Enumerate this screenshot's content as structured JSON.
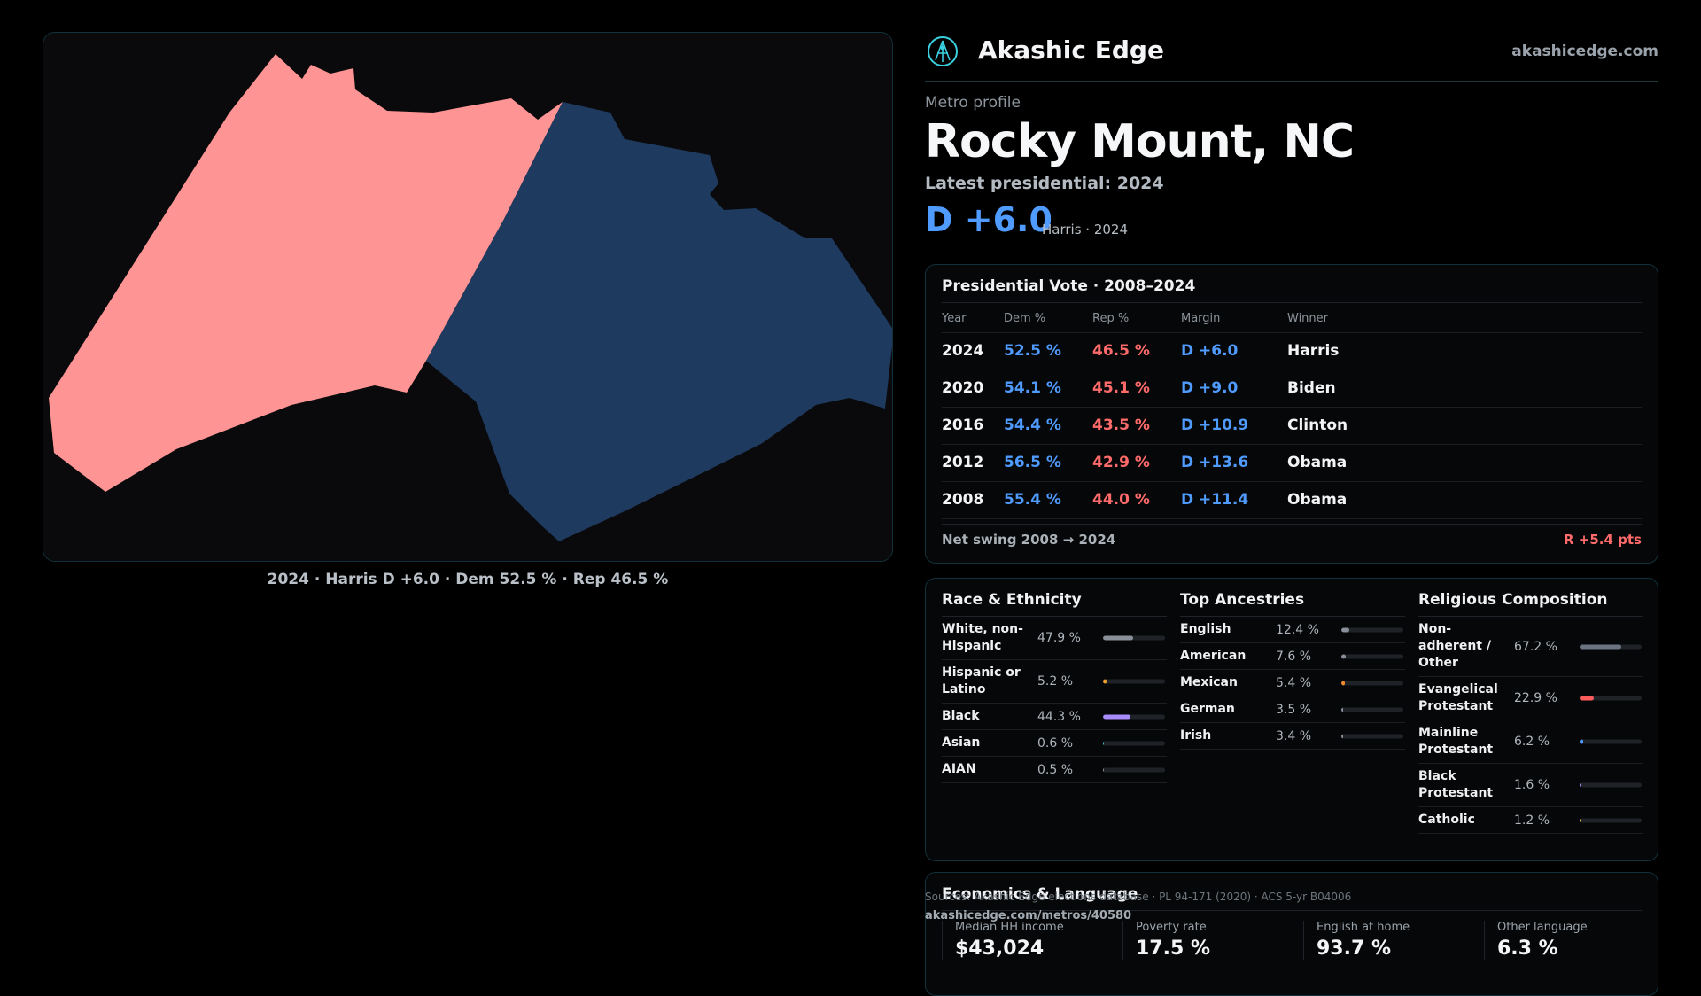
{
  "map": {
    "caption": "2024 · Harris D +6.0 · Dem 52.5 % · Rep 46.5 %",
    "colors": {
      "rep_region": "#ff9494",
      "dem_region": "#1f3a5f",
      "background": "#0a0a0c"
    }
  },
  "header": {
    "brand": "Akashic Edge",
    "site": "akashicedge.com",
    "kicker": "Metro profile",
    "title": "Rocky Mount, NC",
    "latest": "Latest presidential: 2024",
    "margin": "D +6.0",
    "margin_sub": "Harris · 2024"
  },
  "vote": {
    "title": "Presidential Vote · 2008–2024",
    "columns": [
      "Year",
      "Dem %",
      "Rep %",
      "Margin",
      "Winner"
    ],
    "rows": [
      {
        "year": "2024",
        "dem": "52.5 %",
        "rep": "46.5 %",
        "margin": "D +6.0",
        "winner": "Harris"
      },
      {
        "year": "2020",
        "dem": "54.1 %",
        "rep": "45.1 %",
        "margin": "D +9.0",
        "winner": "Biden"
      },
      {
        "year": "2016",
        "dem": "54.4 %",
        "rep": "43.5 %",
        "margin": "D +10.9",
        "winner": "Clinton"
      },
      {
        "year": "2012",
        "dem": "56.5 %",
        "rep": "42.9 %",
        "margin": "D +13.6",
        "winner": "Obama"
      },
      {
        "year": "2008",
        "dem": "55.4 %",
        "rep": "44.0 %",
        "margin": "D +11.4",
        "winner": "Obama"
      }
    ],
    "swing_label": "Net swing 2008 → 2024",
    "swing_value": "R +5.4 pts"
  },
  "race": {
    "title": "Race & Ethnicity",
    "items": [
      {
        "label": "White, non-Hispanic",
        "pct": "47.9 %",
        "value": 47.9,
        "color": "#8a9099"
      },
      {
        "label": "Hispanic or Latino",
        "pct": "5.2 %",
        "value": 5.2,
        "color": "#f0a030"
      },
      {
        "label": "Black",
        "pct": "44.3 %",
        "value": 44.3,
        "color": "#a78bfa"
      },
      {
        "label": "Asian",
        "pct": "0.6 %",
        "value": 0.6,
        "color": "#4fc3d9"
      },
      {
        "label": "AIAN",
        "pct": "0.5 %",
        "value": 0.5,
        "color": "#8a9099"
      }
    ]
  },
  "ancestry": {
    "title": "Top Ancestries",
    "items": [
      {
        "label": "English",
        "pct": "12.4 %",
        "value": 12.4,
        "color": "#8a9099"
      },
      {
        "label": "American",
        "pct": "7.6 %",
        "value": 7.6,
        "color": "#8a9099"
      },
      {
        "label": "Mexican",
        "pct": "5.4 %",
        "value": 5.4,
        "color": "#f08a30"
      },
      {
        "label": "German",
        "pct": "3.5 %",
        "value": 3.5,
        "color": "#8a9099"
      },
      {
        "label": "Irish",
        "pct": "3.4 %",
        "value": 3.4,
        "color": "#8a9099"
      }
    ]
  },
  "religion": {
    "title": "Religious Composition",
    "items": [
      {
        "label": "Non-adherent / Other",
        "pct": "67.2 %",
        "value": 67.2,
        "color": "#6b7280"
      },
      {
        "label": "Evangelical Protestant",
        "pct": "22.9 %",
        "value": 22.9,
        "color": "#ff5c5c"
      },
      {
        "label": "Mainline Protestant",
        "pct": "6.2 %",
        "value": 6.2,
        "color": "#4f9bff"
      },
      {
        "label": "Black Protestant",
        "pct": "1.6 %",
        "value": 1.6,
        "color": "#a78bfa"
      },
      {
        "label": "Catholic",
        "pct": "1.2 %",
        "value": 1.2,
        "color": "#f0c040"
      }
    ]
  },
  "econ": {
    "title": "Economics & Language",
    "items": [
      {
        "label": "Median HH income",
        "value": "$43,024"
      },
      {
        "label": "Poverty rate",
        "value": "17.5 %"
      },
      {
        "label": "English at home",
        "value": "93.7 %"
      },
      {
        "label": "Other language",
        "value": "6.3 %"
      }
    ]
  },
  "footer": {
    "sources": "Sources: Akashic Edge elections database · PL 94-171 (2020) · ACS 5-yr B04006",
    "url": "akashicedge.com/metros/40580"
  }
}
